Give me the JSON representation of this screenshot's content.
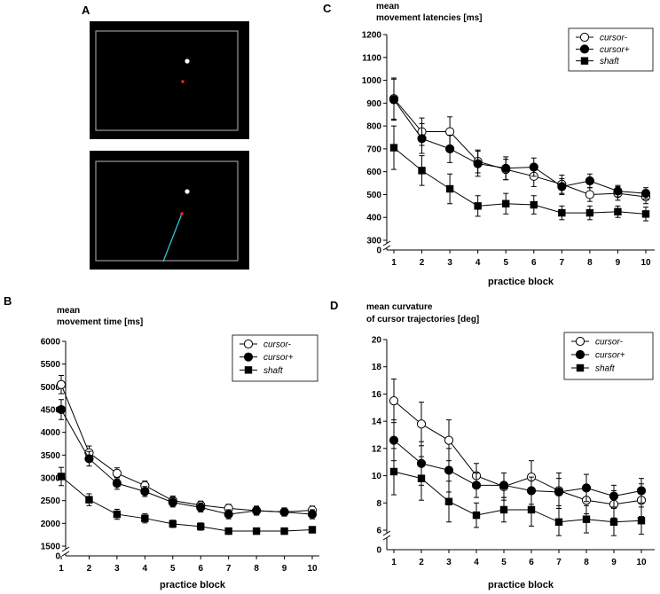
{
  "panel_a": {
    "label": "A",
    "screens": [
      {
        "name": "screen-without-shaft",
        "shaft": false
      },
      {
        "name": "screen-with-shaft",
        "shaft": true
      }
    ],
    "colors": {
      "background": "#000000",
      "frame": "#9a9a9a",
      "target": "#ffffff",
      "cursor": "#e8202a",
      "shaft": "#2fc5d6"
    }
  },
  "chart_data": [
    {
      "id": "B",
      "panel_label": "B",
      "type": "line",
      "title_lines": [
        "mean",
        "movement time [ms]"
      ],
      "xlabel": "practice block",
      "ylabel": "",
      "x": [
        1,
        2,
        3,
        4,
        5,
        6,
        7,
        8,
        9,
        10
      ],
      "yticks": [
        1500,
        2000,
        2500,
        3000,
        3500,
        4000,
        4500,
        5000,
        5500,
        6000
      ],
      "zero_label": "0",
      "ylim": [
        1500,
        6000
      ],
      "legend": "top-right",
      "series": [
        {
          "name": "cursor-",
          "marker": "open-circle",
          "values": [
            5050,
            3550,
            3100,
            2830,
            2500,
            2400,
            2330,
            2280,
            2250,
            2290
          ],
          "errors": [
            200,
            150,
            120,
            100,
            100,
            90,
            90,
            90,
            80,
            90
          ]
        },
        {
          "name": "cursor+",
          "marker": "filled-circle",
          "values": [
            4500,
            3420,
            2880,
            2700,
            2460,
            2350,
            2200,
            2280,
            2250,
            2200
          ],
          "errors": [
            220,
            160,
            130,
            110,
            100,
            100,
            100,
            100,
            90,
            100
          ]
        },
        {
          "name": "shaft",
          "marker": "filled-square",
          "values": [
            3030,
            2520,
            2200,
            2110,
            1990,
            1930,
            1830,
            1830,
            1830,
            1860
          ],
          "errors": [
            200,
            130,
            110,
            100,
            80,
            80,
            70,
            70,
            70,
            70
          ]
        }
      ]
    },
    {
      "id": "C",
      "panel_label": "C",
      "type": "line",
      "title_lines": [
        "mean",
        "movement latencies [ms]"
      ],
      "xlabel": "practice block",
      "ylabel": "",
      "x": [
        1,
        2,
        3,
        4,
        5,
        6,
        7,
        8,
        9,
        10
      ],
      "yticks": [
        300,
        400,
        500,
        600,
        700,
        800,
        900,
        1000,
        1100,
        1200
      ],
      "zero_label": "0",
      "ylim": [
        300,
        1200
      ],
      "legend": "top-right",
      "series": [
        {
          "name": "cursor-",
          "marker": "open-circle",
          "values": [
            920,
            775,
            775,
            645,
            610,
            580,
            545,
            500,
            505,
            490
          ],
          "errors": [
            90,
            60,
            65,
            50,
            45,
            45,
            40,
            30,
            30,
            30
          ]
        },
        {
          "name": "cursor+",
          "marker": "filled-circle",
          "values": [
            915,
            745,
            700,
            635,
            615,
            620,
            535,
            560,
            515,
            505
          ],
          "errors": [
            90,
            65,
            60,
            55,
            50,
            40,
            35,
            30,
            25,
            25
          ]
        },
        {
          "name": "shaft",
          "marker": "filled-square",
          "values": [
            705,
            605,
            525,
            450,
            460,
            455,
            420,
            420,
            425,
            415
          ],
          "errors": [
            95,
            65,
            65,
            45,
            45,
            40,
            30,
            30,
            25,
            30
          ]
        }
      ]
    },
    {
      "id": "D",
      "panel_label": "D",
      "type": "line",
      "title_lines": [
        "mean curvature",
        "of cursor trajectories [deg]"
      ],
      "xlabel": "practice block",
      "ylabel": "",
      "x": [
        1,
        2,
        3,
        4,
        5,
        6,
        7,
        8,
        9,
        10
      ],
      "yticks": [
        6,
        8,
        10,
        12,
        14,
        16,
        18,
        20
      ],
      "zero_label": "0",
      "ylim": [
        6,
        20
      ],
      "legend": "top-right",
      "series": [
        {
          "name": "cursor-",
          "marker": "open-circle",
          "values": [
            15.5,
            13.8,
            12.6,
            10.0,
            9.2,
            9.9,
            8.9,
            8.2,
            7.9,
            8.2
          ],
          "errors": [
            1.6,
            1.6,
            1.5,
            0.9,
            1.0,
            1.2,
            1.3,
            1.0,
            1.0,
            1.2
          ]
        },
        {
          "name": "cursor+",
          "marker": "filled-circle",
          "values": [
            12.6,
            10.9,
            10.4,
            9.3,
            9.3,
            8.9,
            8.8,
            9.1,
            8.5,
            8.9
          ],
          "errors": [
            1.5,
            1.6,
            1.6,
            0.9,
            0.9,
            1.0,
            1.0,
            1.0,
            0.8,
            0.9
          ]
        },
        {
          "name": "shaft",
          "marker": "filled-square",
          "values": [
            10.3,
            9.8,
            8.1,
            7.1,
            7.5,
            7.5,
            6.6,
            6.8,
            6.6,
            6.7
          ],
          "errors": [
            1.7,
            1.6,
            1.5,
            0.9,
            0.9,
            1.2,
            1.0,
            1.0,
            1.0,
            1.0
          ]
        }
      ]
    }
  ]
}
